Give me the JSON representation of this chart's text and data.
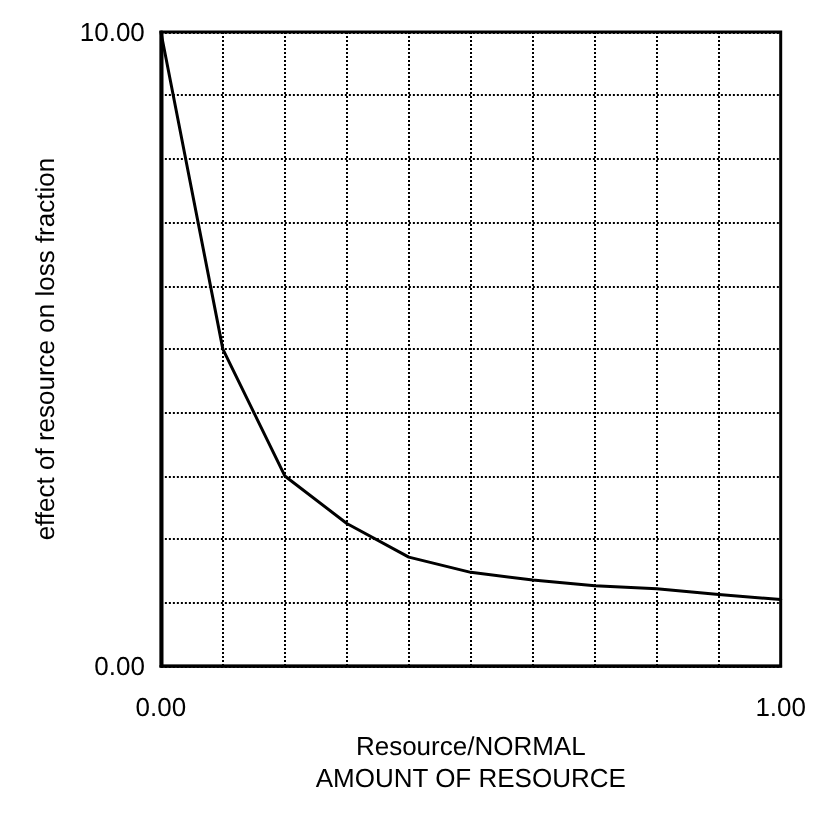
{
  "chart_data": {
    "type": "line",
    "xlabel": "Resource/NORMAL\nAMOUNT OF RESOURCE",
    "ylabel": "effect of resource on loss fraction",
    "x": [
      0,
      0.1,
      0.2,
      0.3,
      0.4,
      0.5,
      0.6,
      0.7,
      0.8,
      0.9,
      1.0
    ],
    "series": [
      {
        "color": "#000000",
        "values": [
          10,
          5.0,
          3.0,
          2.25,
          1.72,
          1.48,
          1.36,
          1.27,
          1.22,
          1.13,
          1.05
        ]
      }
    ],
    "xlim": [
      0,
      1
    ],
    "ylim": [
      0,
      10
    ],
    "xticks": [
      {
        "value": 0,
        "label": "0.00"
      },
      {
        "value": 0.1,
        "label": null
      },
      {
        "value": 0.2,
        "label": null
      },
      {
        "value": 0.3,
        "label": null
      },
      {
        "value": 0.4,
        "label": null
      },
      {
        "value": 0.5,
        "label": null
      },
      {
        "value": 0.6,
        "label": null
      },
      {
        "value": 0.7,
        "label": null
      },
      {
        "value": 0.8,
        "label": null
      },
      {
        "value": 0.9,
        "label": null
      },
      {
        "value": 1,
        "label": "1.00"
      }
    ],
    "yticks": [
      {
        "value": 0,
        "label": "0.00"
      },
      {
        "value": 1,
        "label": null
      },
      {
        "value": 2,
        "label": null
      },
      {
        "value": 3,
        "label": null
      },
      {
        "value": 4,
        "label": null
      },
      {
        "value": 5,
        "label": null
      },
      {
        "value": 6,
        "label": null
      },
      {
        "value": 7,
        "label": null
      },
      {
        "value": 8,
        "label": null
      },
      {
        "value": 9,
        "label": null
      },
      {
        "value": 10,
        "label": "10.00"
      }
    ],
    "grid": true,
    "marker": "none",
    "line_style": "solid"
  }
}
